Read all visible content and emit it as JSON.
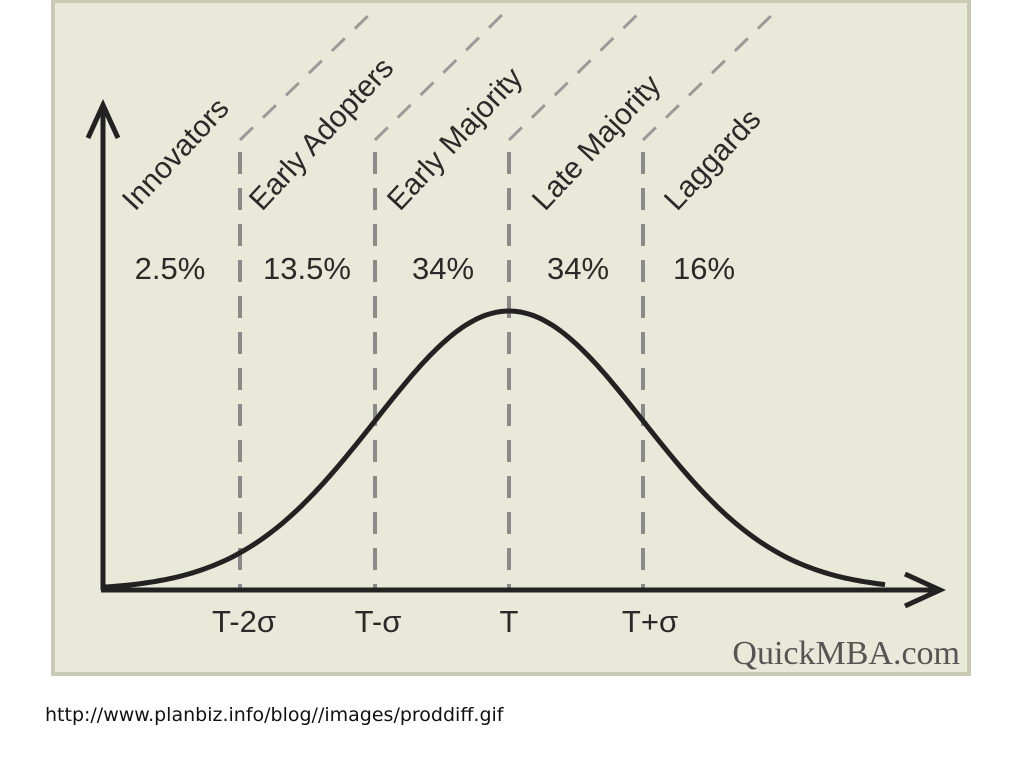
{
  "segments": [
    {
      "label": "Innovators",
      "share": "2.5%"
    },
    {
      "label": "Early Adopters",
      "share": "13.5%"
    },
    {
      "label": "Early Majority",
      "share": "34%"
    },
    {
      "label": "Late Majority",
      "share": "34%"
    },
    {
      "label": "Laggards",
      "share": "16%"
    }
  ],
  "x_labels": [
    "T-2σ",
    "T-σ",
    "T",
    "T+σ"
  ],
  "watermark": "QuickMBA.com",
  "caption": "http://www.planbiz.info/blog//images/proddiff.gif"
}
